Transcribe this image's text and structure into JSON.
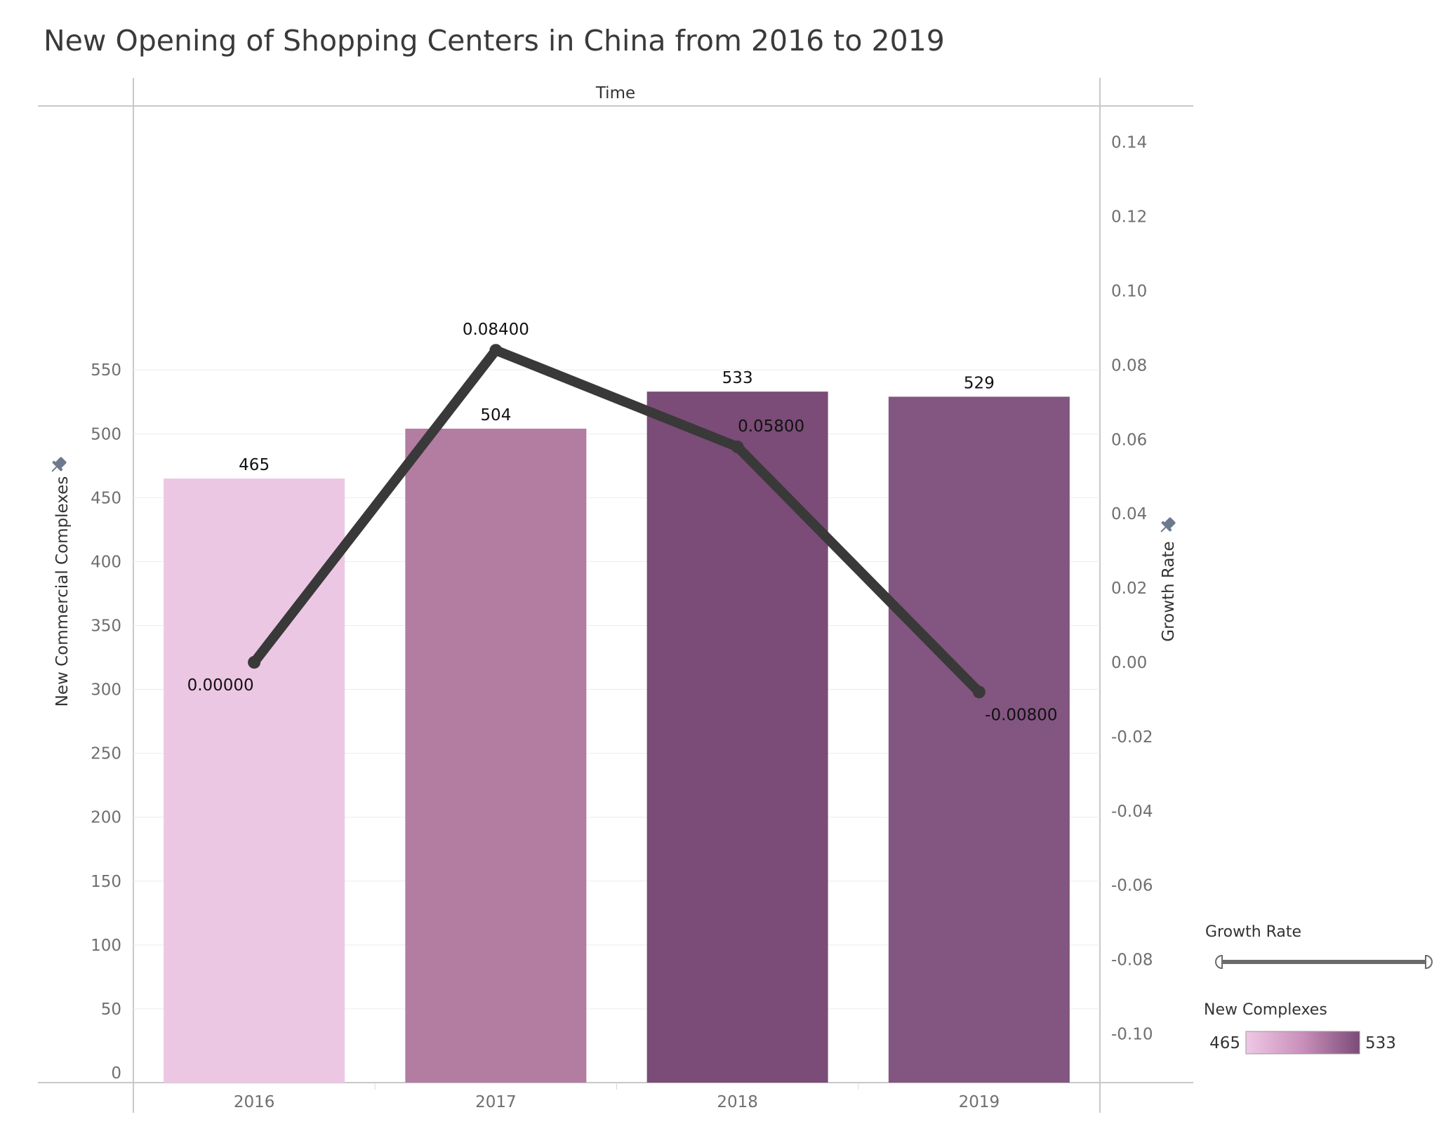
{
  "title": "New Opening of Shopping Centers in China from 2016 to 2019",
  "chart_data": {
    "type": "bar",
    "header": "Time",
    "categories": [
      "2016",
      "2017",
      "2018",
      "2019"
    ],
    "y_left": {
      "label": "New Commercial Complexes",
      "ylim": [
        0,
        570
      ],
      "ticks": [
        "0",
        "50",
        "100",
        "150",
        "200",
        "250",
        "300",
        "350",
        "400",
        "450",
        "500",
        "550"
      ]
    },
    "y_right": {
      "label": "Growth Rate",
      "ylim": [
        -0.115,
        0.14
      ],
      "ticks": [
        "-0.10",
        "-0.08",
        "-0.06",
        "-0.04",
        "-0.02",
        "0.00",
        "0.02",
        "0.04",
        "0.06",
        "0.08",
        "0.10",
        "0.12",
        "0.14"
      ]
    },
    "series": [
      {
        "name": "New Complexes",
        "type": "bar",
        "axis": "left",
        "values": [
          465,
          504,
          533,
          529
        ],
        "labels": [
          "465",
          "504",
          "533",
          "529"
        ],
        "colors": [
          "#ecc7e3",
          "#b37ca1",
          "#7b4c77",
          "#835581"
        ]
      },
      {
        "name": "Growth Rate",
        "type": "line",
        "axis": "right",
        "values": [
          0.0,
          0.084,
          0.058,
          -0.008
        ],
        "labels": [
          "0.00000",
          "0.08400",
          "0.05800",
          "-0.00800"
        ],
        "color": "#393939"
      }
    ],
    "grid": true,
    "legend": {
      "position": "bottom-right",
      "line_title": "Growth Rate",
      "color_title": "New Complexes",
      "color_min": "465",
      "color_max": "533",
      "gradient": [
        "#efc8e5",
        "#c98fba",
        "#7b4c77"
      ]
    }
  }
}
